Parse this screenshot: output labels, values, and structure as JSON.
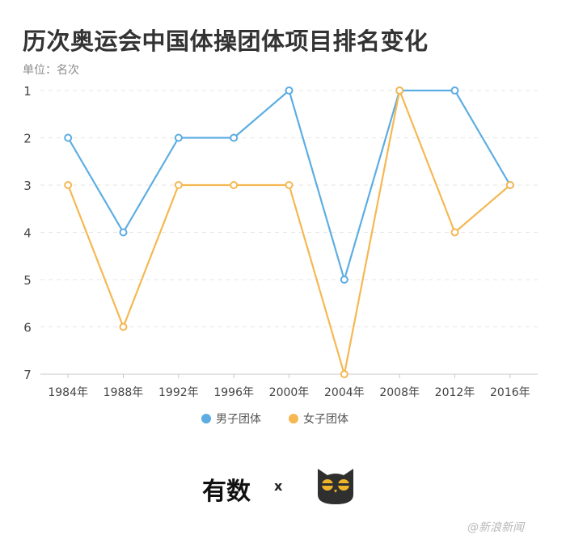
{
  "title": "历次奥运会中国体操团体项目排名变化",
  "unit_label": "单位：名次",
  "chart_data": {
    "type": "line",
    "title": "历次奥运会中国体操团体项目排名变化",
    "ylabel": "单位：名次",
    "xlabel": "",
    "categories": [
      "1984年",
      "1988年",
      "1992年",
      "1996年",
      "2000年",
      "2004年",
      "2008年",
      "2012年",
      "2016年"
    ],
    "y_ticks": [
      1,
      2,
      3,
      4,
      5,
      6,
      7
    ],
    "ylim": [
      1,
      7
    ],
    "y_inverted": true,
    "grid": true,
    "legend_position": "bottom",
    "series": [
      {
        "name": "男子团体",
        "color": "#5dade2",
        "values": [
          2,
          4,
          2,
          2,
          1,
          5,
          1,
          1,
          3
        ]
      },
      {
        "name": "女子团体",
        "color": "#f5b852",
        "values": [
          3,
          6,
          3,
          3,
          3,
          7,
          1,
          4,
          3
        ]
      }
    ]
  },
  "footer": {
    "logo_text": "有数",
    "separator": "x",
    "owl_icon": "owl-logo-icon",
    "watermark": "@新浪新闻"
  }
}
